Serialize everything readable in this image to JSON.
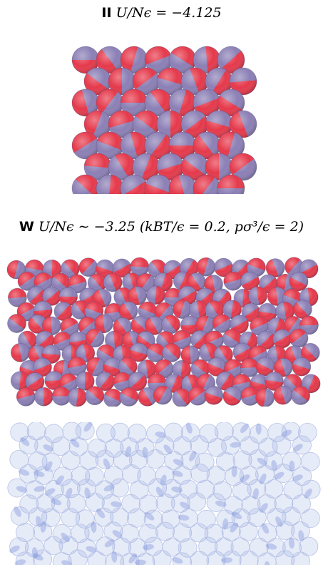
{
  "top_caption": {
    "label": "II",
    "equation": "U/Nϵ = −4.125"
  },
  "middle_caption": {
    "label": "W",
    "equation": "U/Nϵ ∼ −3.25 (kBT/ϵ = 0.2, pσ³/ϵ = 2)"
  },
  "colors": {
    "red_hemisphere": "#e5394b",
    "purple_hemisphere": "#8b7fb5",
    "blue_transparent": "#8ea3e0",
    "background": "#ffffff"
  },
  "panels": [
    {
      "id": "crystal-II",
      "description_icon": "sphere-lattice-icon"
    },
    {
      "id": "liquid-W",
      "description_icon": "sphere-cluster-icon"
    },
    {
      "id": "liquid-W-transparent",
      "description_icon": "sphere-cluster-transparent-icon"
    }
  ]
}
